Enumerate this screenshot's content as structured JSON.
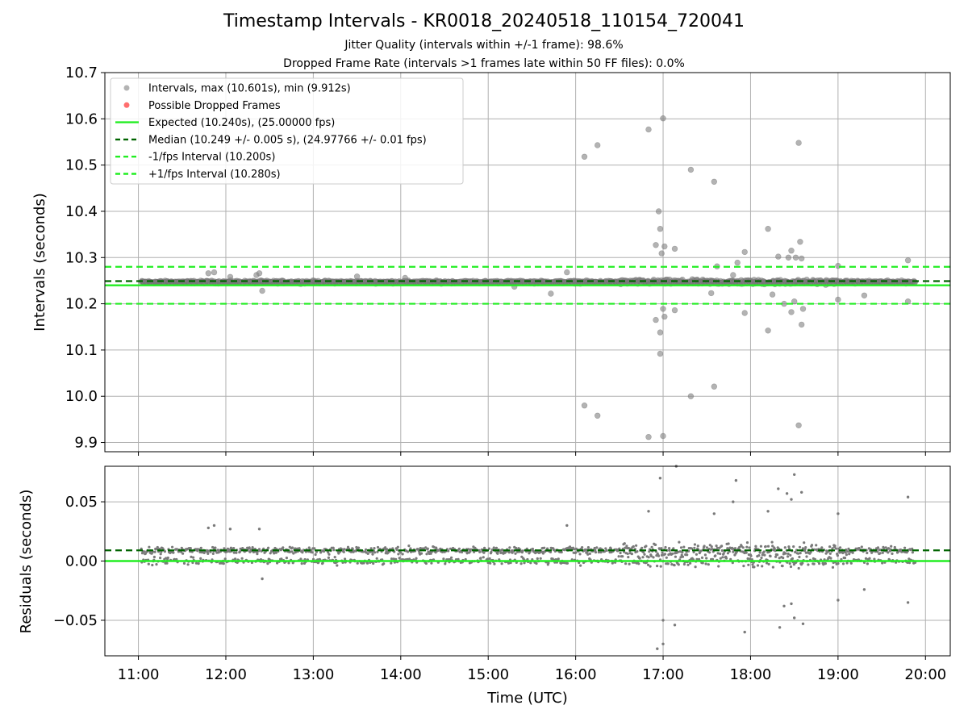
{
  "title": "Timestamp Intervals - KR0018_20240518_110154_720041",
  "subtitles": [
    "Jitter Quality (intervals within +/-1 frame): 98.6%",
    "Dropped Frame Rate (intervals >1 frames late within 50 FF files): 0.0%"
  ],
  "colors": {
    "points": "#808080",
    "dropped": "#ff5555",
    "expected": "#22ee22",
    "median": "#006400",
    "bounds": "#22ee22",
    "grid": "#b0b0b0"
  },
  "chart_data": [
    {
      "type": "scatter",
      "ylabel": "Intervals (seconds)",
      "xlim": [
        "10:37",
        "20:17"
      ],
      "ylim": [
        9.88,
        10.7
      ],
      "yticks": [
        "9.9",
        "10.0",
        "10.1",
        "10.2",
        "10.3",
        "10.4",
        "10.5",
        "10.6",
        "10.7"
      ],
      "grid": true,
      "legend_position": "upper-left",
      "legend": [
        "Intervals, max (10.601s), min (9.912s)",
        "Possible Dropped Frames",
        "Expected (10.240s), (25.00000 fps)",
        "Median (10.249 +/- 0.005 s), (24.97766 +/- 0.01 fps)",
        "-1/fps Interval (10.200s)",
        "+1/fps Interval (10.280s)"
      ],
      "reference_lines": {
        "expected": 10.24,
        "median": 10.249,
        "minus_1_fps": 10.2,
        "plus_1_fps": 10.28
      },
      "series": [
        {
          "name": "Intervals",
          "baseline": 10.247,
          "time_range": [
            "11:02",
            "19:53"
          ],
          "points": [
            [
              "11:48",
              10.266
            ],
            [
              "11:52",
              10.268
            ],
            [
              "12:03",
              10.258
            ],
            [
              "12:21",
              10.262
            ],
            [
              "12:23",
              10.266
            ],
            [
              "12:25",
              10.228
            ],
            [
              "13:30",
              10.259
            ],
            [
              "14:03",
              10.256
            ],
            [
              "15:18",
              10.237
            ],
            [
              "15:43",
              10.222
            ],
            [
              "15:54",
              10.268
            ],
            [
              "16:06",
              10.518
            ],
            [
              "16:06",
              9.98
            ],
            [
              "16:15",
              10.543
            ],
            [
              "16:15",
              9.958
            ],
            [
              "16:50",
              10.577
            ],
            [
              "16:50",
              9.912
            ],
            [
              "16:55",
              10.327
            ],
            [
              "16:55",
              10.165
            ],
            [
              "16:57",
              10.4
            ],
            [
              "16:58",
              10.362
            ],
            [
              "16:58",
              10.138
            ],
            [
              "16:58",
              10.092
            ],
            [
              "16:59",
              10.309
            ],
            [
              "17:00",
              10.601
            ],
            [
              "17:00",
              10.189
            ],
            [
              "17:00",
              9.914
            ],
            [
              "17:01",
              10.324
            ],
            [
              "17:01",
              10.172
            ],
            [
              "17:08",
              10.319
            ],
            [
              "17:08",
              10.186
            ],
            [
              "17:19",
              10.49
            ],
            [
              "17:19",
              10.0
            ],
            [
              "17:33",
              10.223
            ],
            [
              "17:35",
              10.464
            ],
            [
              "17:35",
              10.021
            ],
            [
              "17:37",
              10.281
            ],
            [
              "17:48",
              10.262
            ],
            [
              "17:51",
              10.289
            ],
            [
              "17:56",
              10.312
            ],
            [
              "17:56",
              10.18
            ],
            [
              "18:12",
              10.362
            ],
            [
              "18:12",
              10.142
            ],
            [
              "18:15",
              10.22
            ],
            [
              "18:19",
              10.302
            ],
            [
              "18:23",
              10.2
            ],
            [
              "18:26",
              10.3
            ],
            [
              "18:28",
              10.315
            ],
            [
              "18:28",
              10.182
            ],
            [
              "18:30",
              10.205
            ],
            [
              "18:31",
              10.3
            ],
            [
              "18:33",
              10.548
            ],
            [
              "18:33",
              9.937
            ],
            [
              "18:34",
              10.334
            ],
            [
              "18:35",
              10.298
            ],
            [
              "18:35",
              10.155
            ],
            [
              "18:36",
              10.189
            ],
            [
              "19:00",
              10.282
            ],
            [
              "19:00",
              10.209
            ],
            [
              "19:18",
              10.218
            ],
            [
              "19:48",
              10.294
            ],
            [
              "19:48",
              10.205
            ]
          ]
        },
        {
          "name": "Possible Dropped Frames",
          "points": []
        }
      ]
    },
    {
      "type": "scatter",
      "ylabel": "Residuals (seconds)",
      "xlabel": "Time (UTC)",
      "xlim": [
        "10:37",
        "20:17"
      ],
      "xticks": [
        "11:00",
        "12:00",
        "13:00",
        "14:00",
        "15:00",
        "16:00",
        "17:00",
        "18:00",
        "19:00",
        "20:00"
      ],
      "ylim": [
        -0.08,
        0.08
      ],
      "yticks": [
        "−0.05",
        "0.00",
        "0.05"
      ],
      "grid": true,
      "reference_lines": {
        "zero": 0.0,
        "median_offset": 0.009
      },
      "series": [
        {
          "name": "Residuals",
          "bands": [
            0.009,
            0.0
          ],
          "time_range": [
            "11:02",
            "19:53"
          ],
          "points": [
            [
              "11:48",
              0.028
            ],
            [
              "11:52",
              0.03
            ],
            [
              "12:03",
              0.027
            ],
            [
              "12:23",
              0.027
            ],
            [
              "12:25",
              -0.015
            ],
            [
              "15:54",
              0.03
            ],
            [
              "16:50",
              0.042
            ],
            [
              "16:58",
              0.07
            ],
            [
              "17:00",
              -0.05
            ],
            [
              "17:00",
              -0.07
            ],
            [
              "16:56",
              -0.074
            ],
            [
              "17:08",
              -0.054
            ],
            [
              "17:09",
              0.08
            ],
            [
              "17:35",
              0.04
            ],
            [
              "17:48",
              0.05
            ],
            [
              "17:50",
              0.068
            ],
            [
              "17:56",
              -0.06
            ],
            [
              "18:12",
              0.042
            ],
            [
              "18:19",
              0.061
            ],
            [
              "18:25",
              0.057
            ],
            [
              "18:28",
              0.052
            ],
            [
              "18:23",
              -0.038
            ],
            [
              "18:28",
              -0.036
            ],
            [
              "18:30",
              0.073
            ],
            [
              "18:30",
              -0.048
            ],
            [
              "18:20",
              -0.056
            ],
            [
              "18:35",
              0.058
            ],
            [
              "18:36",
              -0.053
            ],
            [
              "19:00",
              0.04
            ],
            [
              "19:00",
              -0.033
            ],
            [
              "19:18",
              -0.024
            ],
            [
              "19:48",
              0.054
            ],
            [
              "19:48",
              -0.035
            ]
          ]
        }
      ]
    }
  ]
}
